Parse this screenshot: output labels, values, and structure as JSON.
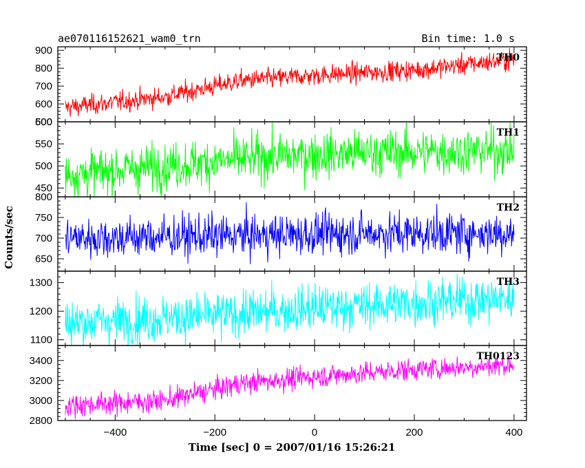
{
  "header": {
    "title": "ae070116152621_wam0_trn",
    "bin_time": "Bin time: 1.0 s"
  },
  "chart_data": {
    "type": "line",
    "xlabel": "Time [sec] 0 = 2007/01/16 15:26:21",
    "ylabel": "Counts/sec",
    "xlim": [
      -515,
      425
    ],
    "x_start": -500,
    "x_end": 400,
    "x_step": 1,
    "x_ticks": [
      -400,
      -200,
      0,
      200,
      400
    ],
    "x_tick_labels": [
      "−400",
      "−200",
      "0",
      "200",
      "400"
    ],
    "panels": [
      {
        "name": "TH0",
        "color": "#ff0000",
        "ylim": [
          500,
          920
        ],
        "y_ticks": [
          500,
          600,
          700,
          800,
          900
        ],
        "trend": [
          [
            -500,
            580
          ],
          [
            -300,
            640
          ],
          [
            -200,
            700
          ],
          [
            -150,
            730
          ],
          [
            0,
            760
          ],
          [
            200,
            790
          ],
          [
            400,
            850
          ]
        ],
        "noise": 28,
        "clip_top": true
      },
      {
        "name": "TH1",
        "color": "#00ff00",
        "ylim": [
          430,
          600
        ],
        "y_ticks": [
          450,
          500,
          550,
          600
        ],
        "trend": [
          [
            -500,
            480
          ],
          [
            -300,
            500
          ],
          [
            -100,
            520
          ],
          [
            100,
            530
          ],
          [
            400,
            535
          ]
        ],
        "noise": 26,
        "clip_top": false
      },
      {
        "name": "TH2",
        "color": "#0000ff",
        "ylim": [
          620,
          800
        ],
        "y_ticks": [
          650,
          700,
          750,
          800
        ],
        "trend": [
          [
            -500,
            700
          ],
          [
            -200,
            705
          ],
          [
            100,
            712
          ],
          [
            400,
            712
          ]
        ],
        "noise": 25,
        "clip_top": false
      },
      {
        "name": "TH3",
        "color": "#00ffff",
        "ylim": [
          1080,
          1340
        ],
        "y_ticks": [
          1100,
          1200,
          1300
        ],
        "trend": [
          [
            -500,
            1160
          ],
          [
            -250,
            1180
          ],
          [
            0,
            1210
          ],
          [
            200,
            1230
          ],
          [
            400,
            1245
          ]
        ],
        "noise": 40,
        "clip_top": true
      },
      {
        "name": "TH0123",
        "color": "#ff00ff",
        "ylim": [
          2800,
          3550
        ],
        "y_ticks": [
          2800,
          3000,
          3200,
          3400
        ],
        "trend": [
          [
            -500,
            2950
          ],
          [
            -300,
            3000
          ],
          [
            -150,
            3170
          ],
          [
            0,
            3240
          ],
          [
            200,
            3310
          ],
          [
            400,
            3360
          ]
        ],
        "noise": 55,
        "clip_top": false
      }
    ]
  }
}
